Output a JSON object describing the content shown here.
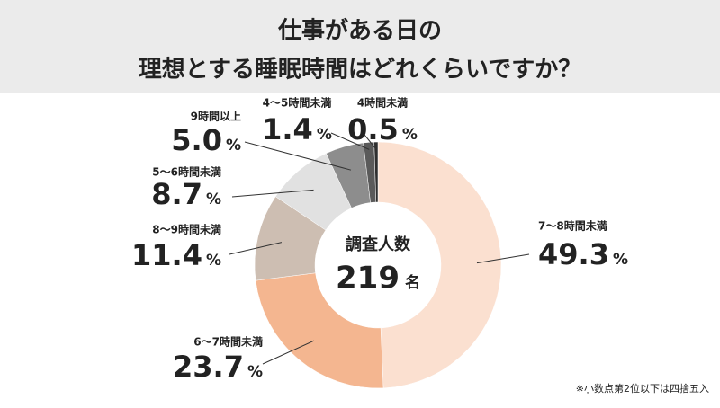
{
  "chart_data": {
    "type": "donut",
    "title_lines": [
      "仕事がある日の",
      "理想とする睡眠時間はどれくらいですか？"
    ],
    "categories": [
      "7～8時間未満",
      "6～7時間未満",
      "8～9時間未満",
      "5～6時間未満",
      "9時間以上",
      "4～5時間未満",
      "4時間未満"
    ],
    "values": [
      49.3,
      23.7,
      11.4,
      8.7,
      5.0,
      1.4,
      0.5
    ],
    "value_labels": [
      "49.3",
      "23.7",
      "11.4",
      "8.7",
      "5.0",
      "1.4",
      "0.5"
    ],
    "unit": "%",
    "colors": [
      "#fbe0d0",
      "#f4b690",
      "#cdbeb2",
      "#e1e1e1",
      "#8d8d8d",
      "#5a5a5a",
      "#2f2f2f"
    ],
    "center_label": "調査人数",
    "sample_size": 219,
    "sample_unit": "名",
    "footnote": "※小数点第2位以下は四捨五入"
  }
}
